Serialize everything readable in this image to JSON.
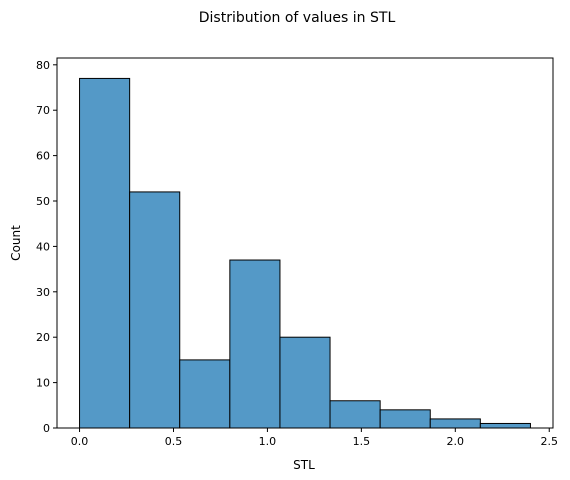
{
  "chart_data": {
    "type": "histogram",
    "title": "Distribution of values in STL",
    "xlabel": "STL",
    "ylabel": "Count",
    "bins": [
      {
        "x0": 0.0,
        "x1": 0.2667,
        "count": 77
      },
      {
        "x0": 0.2667,
        "x1": 0.5333,
        "count": 52
      },
      {
        "x0": 0.5333,
        "x1": 0.8,
        "count": 15
      },
      {
        "x0": 0.8,
        "x1": 1.0667,
        "count": 37
      },
      {
        "x0": 1.0667,
        "x1": 1.3333,
        "count": 20
      },
      {
        "x0": 1.3333,
        "x1": 1.6,
        "count": 6
      },
      {
        "x0": 1.6,
        "x1": 1.8667,
        "count": 4
      },
      {
        "x0": 1.8667,
        "x1": 2.1333,
        "count": 2
      },
      {
        "x0": 2.1333,
        "x1": 2.4,
        "count": 1
      }
    ],
    "xlim": [
      -0.12,
      2.52
    ],
    "ylim": [
      0,
      81.5
    ],
    "xticks": [
      0.0,
      0.5,
      1.0,
      1.5,
      2.0,
      2.5
    ],
    "xtick_labels": [
      "0.0",
      "0.5",
      "1.0",
      "1.5",
      "2.0",
      "2.5"
    ],
    "yticks": [
      0,
      10,
      20,
      30,
      40,
      50,
      60,
      70,
      80
    ],
    "ytick_labels": [
      "0",
      "10",
      "20",
      "30",
      "40",
      "50",
      "60",
      "70",
      "80"
    ],
    "bar_color": "#5499c7",
    "edge_color": "#000000",
    "grid": false
  }
}
